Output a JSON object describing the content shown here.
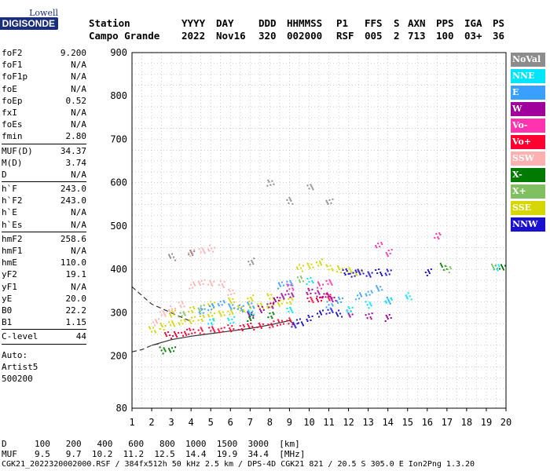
{
  "logo": {
    "line1": "Lowell",
    "line2": "DIGISONDE"
  },
  "header": {
    "labels": [
      "Station",
      "YYYY",
      "DAY",
      "DDD",
      "HHMMSS",
      "P1",
      "FFS",
      "S",
      "AXN",
      "PPS",
      "IGA",
      "PS"
    ],
    "values": [
      "Campo Grande",
      "2022",
      "Nov16",
      "320",
      "002000",
      "RSF",
      "005",
      "2",
      "713",
      "100",
      "03+",
      "36"
    ]
  },
  "params": {
    "group1": [
      {
        "k": "foF2",
        "v": "9.200"
      },
      {
        "k": "foF1",
        "v": "N/A"
      },
      {
        "k": "foF1p",
        "v": "N/A"
      },
      {
        "k": "foE",
        "v": "N/A"
      },
      {
        "k": "foEp",
        "v": "0.52"
      },
      {
        "k": "fxI",
        "v": "N/A"
      },
      {
        "k": "foEs",
        "v": "N/A"
      },
      {
        "k": "fmin",
        "v": "2.80"
      }
    ],
    "group2": [
      {
        "k": "MUF(D)",
        "v": "34.37"
      },
      {
        "k": "M(D)",
        "v": "3.74"
      },
      {
        "k": "D",
        "v": "N/A"
      }
    ],
    "group3": [
      {
        "k": "h`F",
        "v": "243.0"
      },
      {
        "k": "h`F2",
        "v": "243.0"
      },
      {
        "k": "h`E",
        "v": "N/A"
      },
      {
        "k": "h`Es",
        "v": "N/A"
      }
    ],
    "group4": [
      {
        "k": "hmF2",
        "v": "258.6"
      },
      {
        "k": "hmF1",
        "v": "N/A"
      },
      {
        "k": "hmE",
        "v": "110.0"
      },
      {
        "k": "yF2",
        "v": "19.1"
      },
      {
        "k": "yF1",
        "v": "N/A"
      },
      {
        "k": "yE",
        "v": "20.0"
      },
      {
        "k": "B0",
        "v": "22.2"
      },
      {
        "k": "B1",
        "v": "1.15"
      }
    ],
    "group5": [
      {
        "k": "C-level",
        "v": "44"
      }
    ],
    "auto": [
      "Auto:",
      "Artist5",
      "500200"
    ]
  },
  "legend": [
    {
      "label": "NoVal",
      "color": "#8c8c8c"
    },
    {
      "label": "NNE",
      "color": "#00e5ff"
    },
    {
      "label": "E",
      "color": "#3aa0ff"
    },
    {
      "label": "W",
      "color": "#a0009c"
    },
    {
      "label": "Vo-",
      "color": "#ff33b0"
    },
    {
      "label": "Vo+",
      "color": "#ff0030"
    },
    {
      "label": "SSW",
      "color": "#ffb0b0"
    },
    {
      "label": "X-",
      "color": "#007a00"
    },
    {
      "label": "X+",
      "color": "#80c060"
    },
    {
      "label": "SSE",
      "color": "#d6d600"
    },
    {
      "label": "NNW",
      "color": "#1a10d0"
    }
  ],
  "chart_data": {
    "type": "scatter",
    "title": "",
    "xlabel": "",
    "ylabel": "",
    "xlim": [
      1,
      20
    ],
    "ylim": [
      80,
      900
    ],
    "x_ticks": [
      1,
      2,
      3,
      4,
      5,
      6,
      7,
      8,
      9,
      10,
      11,
      12,
      13,
      14,
      15,
      16,
      17,
      18,
      19,
      20
    ],
    "y_ticks": [
      80,
      200,
      300,
      400,
      500,
      600,
      700,
      800,
      900
    ],
    "grid": true,
    "legend_position": "right",
    "series": [
      {
        "color": "#d6d600",
        "points": [
          [
            2.0,
            262
          ],
          [
            2.5,
            270
          ],
          [
            3.0,
            275
          ],
          [
            3.5,
            282
          ],
          [
            4.0,
            285
          ],
          [
            4.5,
            290
          ],
          [
            5.0,
            295
          ],
          [
            5.5,
            300
          ],
          [
            6.0,
            305
          ],
          [
            6.5,
            310
          ],
          [
            7.0,
            312
          ],
          [
            7.5,
            316
          ],
          [
            8.0,
            320
          ],
          [
            8.5,
            325
          ],
          [
            9.0,
            330
          ],
          [
            9.5,
            405
          ],
          [
            10.0,
            410
          ],
          [
            10.5,
            418
          ],
          [
            11.0,
            405
          ],
          [
            11.5,
            402
          ],
          [
            12.0,
            398
          ],
          [
            12.5,
            396
          ],
          [
            3,
            300
          ],
          [
            4,
            310
          ],
          [
            5,
            320
          ],
          [
            6,
            330
          ],
          [
            7,
            335
          ],
          [
            8,
            338
          ]
        ]
      },
      {
        "color": "#ff0030",
        "points": [
          [
            2.8,
            250
          ],
          [
            3.2,
            252
          ],
          [
            3.6,
            256
          ],
          [
            4.0,
            258
          ],
          [
            4.5,
            260
          ],
          [
            5.0,
            262
          ],
          [
            5.5,
            264
          ],
          [
            6.0,
            266
          ],
          [
            6.5,
            268
          ],
          [
            7.0,
            270
          ],
          [
            7.5,
            272
          ],
          [
            8.0,
            275
          ],
          [
            8.5,
            278
          ],
          [
            9.0,
            282
          ],
          [
            10,
            330
          ],
          [
            10.5,
            335
          ],
          [
            11,
            338
          ]
        ]
      },
      {
        "color": "#a0009c",
        "points": [
          [
            7.0,
            300
          ],
          [
            7.5,
            310
          ],
          [
            8.0,
            320
          ],
          [
            8.3,
            330
          ],
          [
            8.6,
            340
          ],
          [
            9.0,
            345
          ],
          [
            10.0,
            350
          ],
          [
            10.4,
            345
          ],
          [
            10.8,
            340
          ],
          [
            11.2,
            335
          ],
          [
            12.0,
            300
          ],
          [
            13.0,
            295
          ],
          [
            14.0,
            290
          ]
        ]
      },
      {
        "color": "#3aa0ff",
        "points": [
          [
            4.5,
            305
          ],
          [
            5.0,
            315
          ],
          [
            5.5,
            322
          ],
          [
            6.0,
            318
          ],
          [
            6.5,
            312
          ],
          [
            7.0,
            320
          ],
          [
            8.5,
            365
          ],
          [
            9.0,
            370
          ],
          [
            11,
            320
          ],
          [
            11.5,
            330
          ],
          [
            12.5,
            340
          ],
          [
            13,
            345
          ],
          [
            13.5,
            360
          ],
          [
            14,
            330
          ]
        ]
      },
      {
        "color": "#ffb0b0",
        "points": [
          [
            2.2,
            280
          ],
          [
            2.5,
            300
          ],
          [
            3,
            310
          ],
          [
            3.5,
            320
          ],
          [
            4,
            365
          ],
          [
            4.5,
            370
          ],
          [
            5,
            372
          ],
          [
            5.5,
            368
          ],
          [
            6,
            350
          ],
          [
            4,
            440
          ],
          [
            4.5,
            445
          ],
          [
            5,
            450
          ]
        ]
      },
      {
        "color": "#1a10d0",
        "points": [
          [
            9.2,
            275
          ],
          [
            9.5,
            280
          ],
          [
            10,
            290
          ],
          [
            10.5,
            300
          ],
          [
            11,
            305
          ],
          [
            11.5,
            300
          ],
          [
            11.8,
            395
          ],
          [
            12.2,
            392
          ],
          [
            12.6,
            394
          ],
          [
            13,
            392
          ],
          [
            13.5,
            395
          ],
          [
            14,
            396
          ],
          [
            16,
            395
          ]
        ]
      },
      {
        "color": "#00e5ff",
        "points": [
          [
            5,
            280
          ],
          [
            6,
            285
          ],
          [
            7,
            300
          ],
          [
            9,
            310
          ],
          [
            10,
            375
          ],
          [
            12,
            310
          ],
          [
            13,
            320
          ],
          [
            14,
            330
          ],
          [
            15,
            340
          ],
          [
            19.5,
            405
          ]
        ]
      },
      {
        "color": "#007a00",
        "points": [
          [
            2.5,
            215
          ],
          [
            3,
            217
          ],
          [
            7,
            290
          ],
          [
            8,
            295
          ],
          [
            16.8,
            408
          ],
          [
            19.8,
            405
          ]
        ]
      },
      {
        "color": "#80c060",
        "points": [
          [
            3.5,
            300
          ],
          [
            4.5,
            312
          ],
          [
            9.5,
            380
          ],
          [
            17,
            402
          ],
          [
            19.4,
            408
          ]
        ]
      },
      {
        "color": "#ff33b0",
        "points": [
          [
            9,
            360
          ],
          [
            10.5,
            365
          ],
          [
            11,
            370
          ],
          [
            13.5,
            460
          ],
          [
            14,
            440
          ],
          [
            16.5,
            480
          ]
        ]
      },
      {
        "color": "#8c8c8c",
        "points": [
          [
            3,
            430
          ],
          [
            4,
            440
          ],
          [
            7,
            420
          ],
          [
            8,
            600
          ],
          [
            9,
            560
          ],
          [
            10,
            590
          ],
          [
            11,
            560
          ]
        ]
      }
    ],
    "profile_solid": [
      [
        2.0,
        225
      ],
      [
        3.0,
        238
      ],
      [
        4.0,
        246
      ],
      [
        5.0,
        252
      ],
      [
        6.0,
        258
      ],
      [
        7.0,
        264
      ],
      [
        8.0,
        272
      ],
      [
        9.0,
        282
      ],
      [
        9.2,
        275
      ]
    ],
    "profile_dashed_upper": [
      [
        1.0,
        360
      ],
      [
        1.5,
        340
      ],
      [
        2.0,
        320
      ],
      [
        2.5,
        310
      ],
      [
        3.0,
        300
      ],
      [
        4.0,
        280
      ]
    ],
    "profile_dashed_lower": [
      [
        1.0,
        210
      ],
      [
        1.5,
        215
      ],
      [
        2.0,
        225
      ],
      [
        2.5,
        230
      ]
    ]
  },
  "footer": {
    "d_label": "D",
    "d_values": "100   200   400   600   800  1000  1500  3000  [km]",
    "muf_label": "MUF",
    "muf_values": "9.5   9.7  10.2  11.2  12.5  14.4  19.9  34.4  [MHz]",
    "info": "CGK21_2022320002000.RSF / 384fx512h 50 kHz 2.5 km / DPS-4D CGK21 821 / 20.5 S 305.0 E Ion2Png 1.3.20"
  }
}
